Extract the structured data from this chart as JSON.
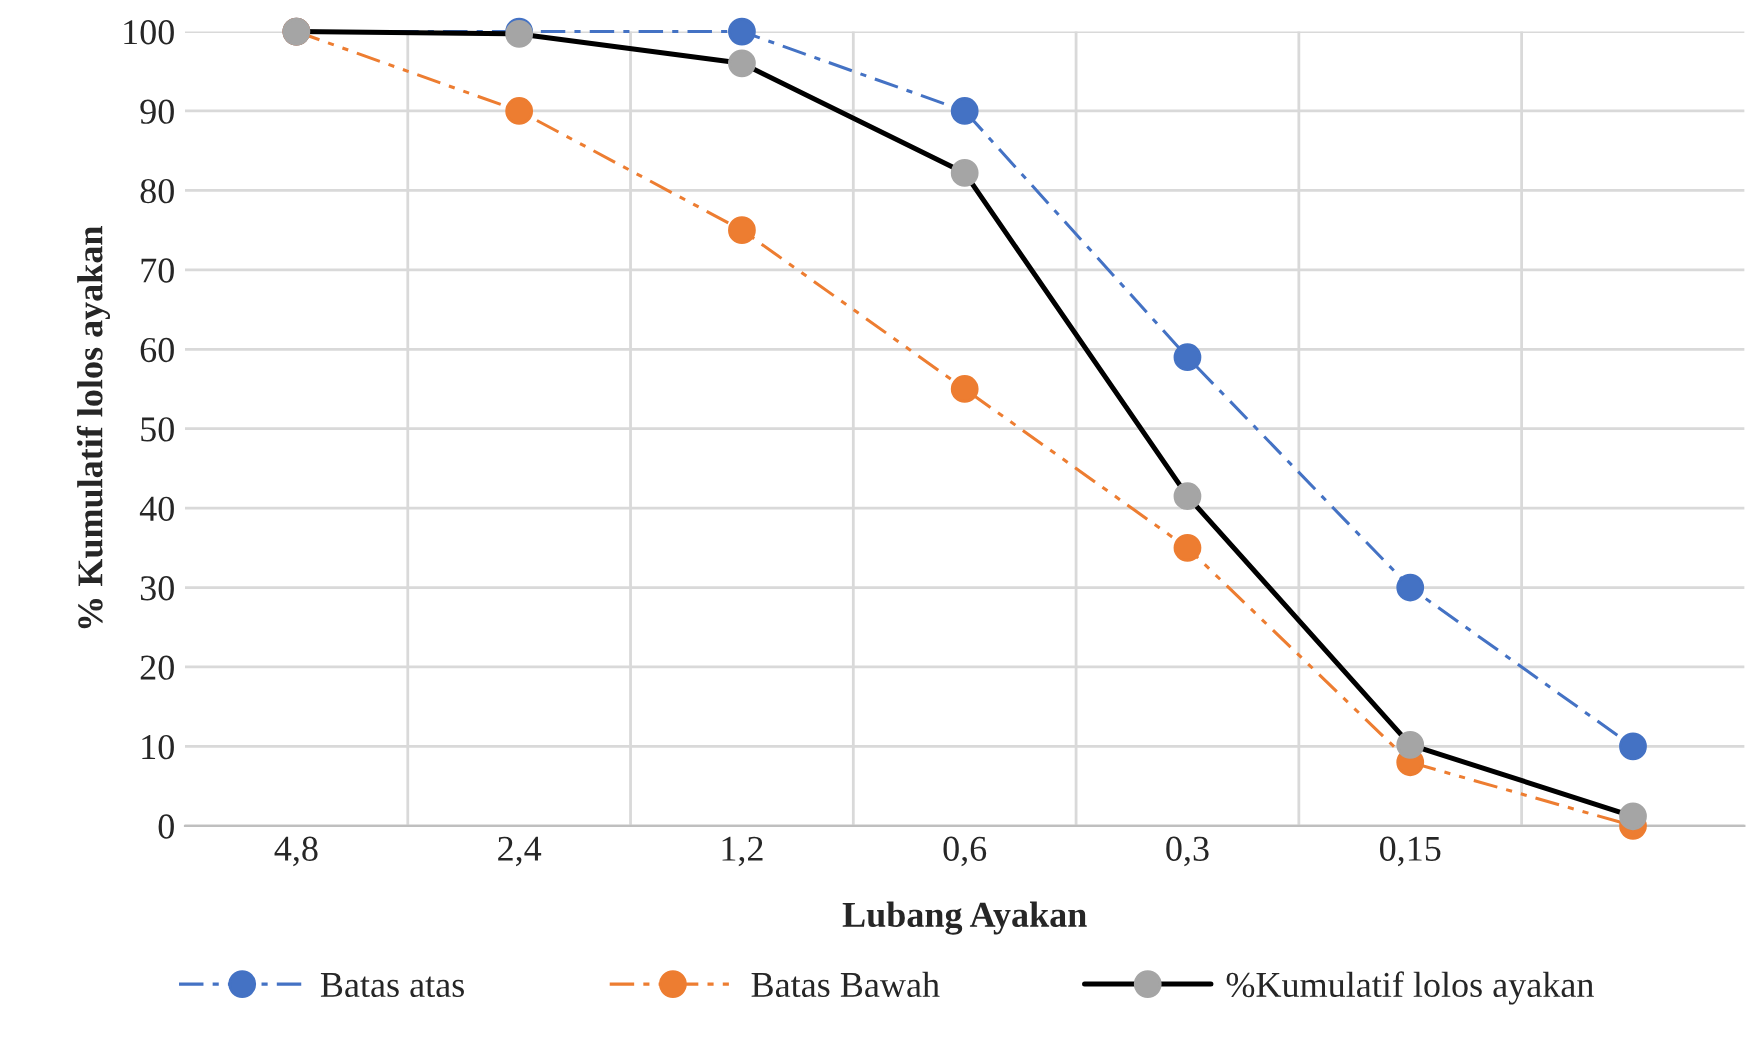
{
  "chart_data": {
    "type": "line",
    "xlabel": "Lubang Ayakan",
    "ylabel": "% Kumulatif lolos ayakan",
    "categories": [
      "4,8",
      "2,4",
      "1,2",
      "0,6",
      "0,3",
      "0,15",
      null
    ],
    "series": [
      {
        "name": "Batas atas",
        "color": "#4472c4",
        "line_style": "dashed",
        "values": [
          100,
          100,
          100,
          90,
          59,
          30,
          10
        ]
      },
      {
        "name": "Batas Bawah",
        "color": "#ed7d31",
        "line_style": "dotted",
        "values": [
          100,
          90,
          75,
          55,
          35,
          8,
          0
        ]
      },
      {
        "name": "%Kumulatif lolos ayakan",
        "color": "#a5a5a5",
        "line_style": "solid",
        "values": [
          100,
          99.7,
          96,
          82.2,
          41.5,
          10.2,
          1.2
        ]
      }
    ],
    "ylim": [
      0,
      100
    ],
    "yticks": [
      0,
      10,
      20,
      30,
      40,
      50,
      60,
      70,
      80,
      90,
      100
    ],
    "grid": true,
    "legend": "bottom",
    "marker": "circle"
  }
}
